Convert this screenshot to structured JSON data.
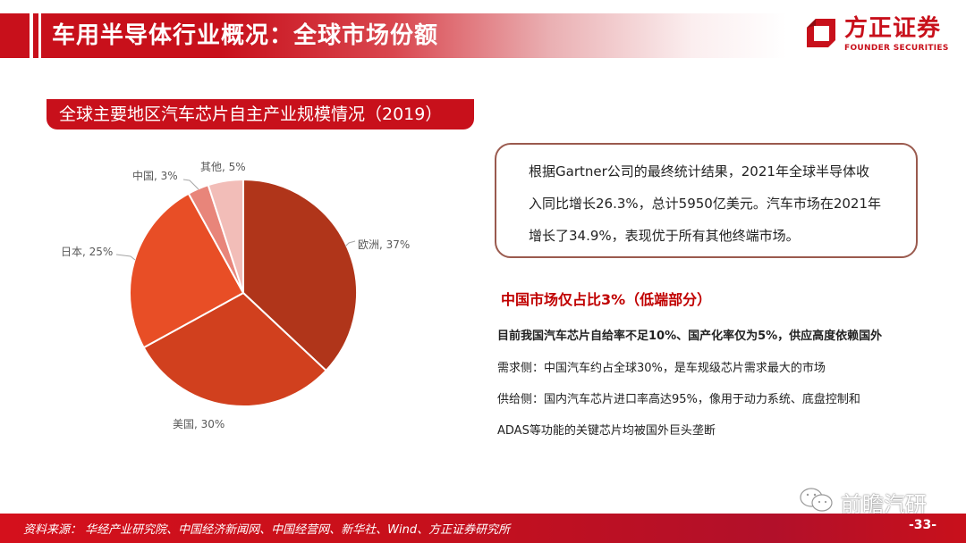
{
  "header": {
    "title": "车用半导体行业概况：全球市场份额",
    "brand_color": "#c8101b"
  },
  "logo": {
    "name_cn": "方正证券",
    "name_en": "FOUNDER SECURITIES",
    "icon": "founder-logo-icon"
  },
  "chart_title": "全球主要地区汽车芯片自主产业规模情况（2019）",
  "chart_data": {
    "type": "pie",
    "title": "全球主要地区汽车芯片自主产业规模情况（2019）",
    "categories": [
      "欧洲",
      "美国",
      "日本",
      "中国",
      "其他"
    ],
    "values": [
      37,
      30,
      25,
      3,
      5
    ],
    "unit": "%",
    "colors": [
      "#b0351a",
      "#d1401e",
      "#e84e26",
      "#e8857a",
      "#f2bdb8"
    ],
    "labels": [
      "欧洲, 37%",
      "美国, 30%",
      "日本, 25%",
      "中国, 3%",
      "其他, 5%"
    ],
    "start_angle": "12 o'clock",
    "direction": "clockwise",
    "legend": "none (data labels outside slices)"
  },
  "info_box": {
    "text": "根据Gartner公司的最终统计结果，2021年全球半导体收入同比增长26.3%，总计5950亿美元。汽车市场在2021年增长了34.9%，表现优于所有其他终端市场。",
    "lines": [
      "根据Gartner公司的最终统计结果，2021年全球半导体收",
      "入同比增长26.3%，总计5950亿美元。汽车市场在2021年",
      "增长了34.9%，表现优于所有其他终端市场。"
    ]
  },
  "analysis": {
    "heading": "中国市场仅占比3%（低端部分）",
    "points": [
      "目前我国汽车芯片自给率不足10%、国产化率仅为5%，供应高度依赖国外",
      "需求侧：中国汽车约占全球30%，是车规级芯片需求最大的市场",
      "供给侧：国内汽车芯片进口率高达95%，像用于动力系统、底盘控制和",
      "ADAS等功能的关键芯片均被国外巨头垄断"
    ]
  },
  "footer": {
    "source": "资料来源：  华经产业研究院、中国经济新闻网、中国经营网、新华社、Wind、方正证券研究所",
    "page": "-33-"
  },
  "watermark": {
    "text": "前瞻汽研",
    "icon": "wechat-icon"
  }
}
